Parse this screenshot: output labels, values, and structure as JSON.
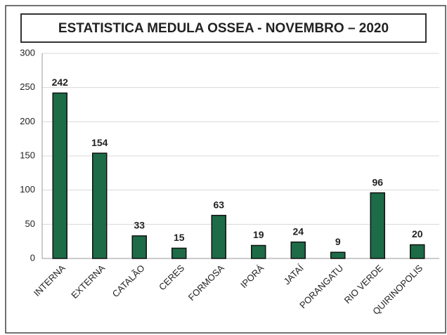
{
  "chart_data": {
    "type": "bar",
    "title": "ESTATISTICA MEDULA OSSEA - NOVEMBRO – 2020",
    "categories": [
      "INTERNA",
      "EXTERNA",
      "CATALÃO",
      "CERES",
      "FORMOSA",
      "IPORÁ",
      "JATAÍ",
      "PORANGATU",
      "RIO VERDE",
      "QUIRINOPOLIS"
    ],
    "values": [
      242,
      154,
      33,
      15,
      63,
      19,
      24,
      9,
      96,
      20
    ],
    "color": "#1d6b47",
    "ylim": [
      0,
      300
    ],
    "yticks": [
      0,
      50,
      100,
      150,
      200,
      250,
      300
    ],
    "grid": true
  }
}
